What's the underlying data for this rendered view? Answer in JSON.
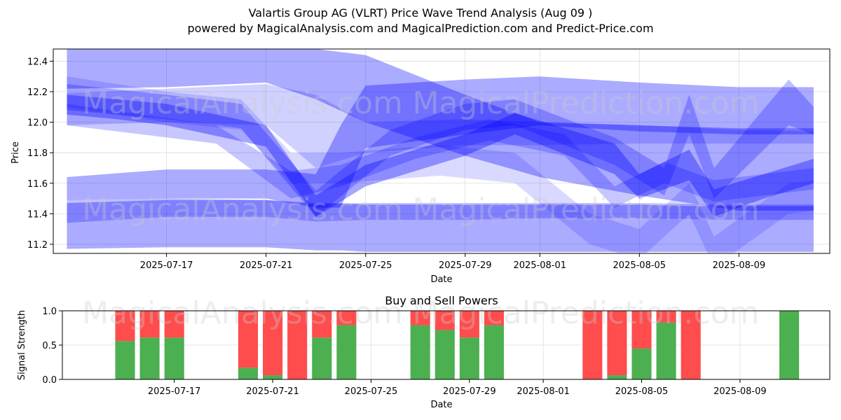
{
  "title": "Valartis Group AG (VLRT) Price Wave Trend Analysis (Aug 09 )",
  "subtitle": "powered by MagicalAnalysis.com and MagicalPrediction.com and Predict-Price.com",
  "watermarks": [
    "MagicalAnalysis.com",
    "MagicalPrediction.com"
  ],
  "colors": {
    "wave": "#0000ff",
    "buy": "#4caf50",
    "sell": "#ff4c4c"
  },
  "chart_data": [
    {
      "type": "area",
      "title": "",
      "xlabel": "Date",
      "ylabel": "Price",
      "x_ticks": [
        "2025-07-17",
        "2025-07-21",
        "2025-07-25",
        "2025-07-29",
        "2025-08-01",
        "2025-08-05",
        "2025-08-09"
      ],
      "y_ticks": [
        "11.2",
        "11.4",
        "11.6",
        "11.8",
        "12.0",
        "12.2",
        "12.4"
      ],
      "xlim": [
        "2025-07-13",
        "2025-08-12"
      ],
      "ylim": [
        11.14,
        12.48
      ],
      "grid": true,
      "series": [
        {
          "dates": [
            "2025-07-13",
            "2025-07-17",
            "2025-07-21",
            "2025-07-23",
            "2025-07-25",
            "2025-07-29",
            "2025-08-01",
            "2025-08-05",
            "2025-08-09",
            "2025-08-12"
          ],
          "upper": [
            12.48,
            12.48,
            12.48,
            12.48,
            12.44,
            12.18,
            12.0,
            11.98,
            11.96,
            11.96
          ],
          "lower": [
            12.22,
            12.23,
            12.26,
            12.15,
            12.0,
            11.78,
            11.64,
            11.52,
            11.42,
            11.42
          ],
          "alpha": 0.33
        },
        {
          "dates": [
            "2025-07-13",
            "2025-07-17",
            "2025-07-21",
            "2025-07-23",
            "2025-07-25",
            "2025-07-29",
            "2025-08-01",
            "2025-08-05",
            "2025-08-09",
            "2025-08-12"
          ],
          "upper": [
            12.19,
            12.22,
            12.25,
            12.18,
            12.0,
            12.02,
            12.0,
            11.98,
            11.95,
            11.94
          ],
          "lower": [
            11.98,
            12.0,
            11.98,
            11.7,
            11.8,
            11.85,
            11.85,
            11.86,
            11.86,
            11.86
          ],
          "alpha": 0.18
        },
        {
          "dates": [
            "2025-07-13",
            "2025-07-15",
            "2025-07-17",
            "2025-07-21",
            "2025-07-23",
            "2025-07-25",
            "2025-07-29",
            "2025-07-31",
            "2025-08-04",
            "2025-08-05",
            "2025-08-07",
            "2025-08-08",
            "2025-08-10",
            "2025-08-12"
          ],
          "upper": [
            12.18,
            12.15,
            12.12,
            11.98,
            11.52,
            11.72,
            11.92,
            12.06,
            11.86,
            11.66,
            11.82,
            11.56,
            11.66,
            11.76
          ],
          "lower": [
            12.05,
            12.02,
            11.98,
            11.84,
            11.38,
            11.58,
            11.78,
            11.92,
            11.66,
            11.5,
            11.62,
            11.38,
            11.5,
            11.6
          ],
          "alpha": 0.35
        },
        {
          "dates": [
            "2025-07-13",
            "2025-07-17",
            "2025-07-21",
            "2025-07-23",
            "2025-07-24",
            "2025-07-25",
            "2025-07-29",
            "2025-08-01",
            "2025-08-05",
            "2025-08-07",
            "2025-08-12"
          ],
          "upper": [
            11.47,
            11.49,
            11.49,
            11.47,
            11.47,
            11.46,
            11.46,
            11.46,
            11.46,
            11.45,
            11.45
          ],
          "lower": [
            11.17,
            11.18,
            11.18,
            11.16,
            11.16,
            11.15,
            11.15,
            11.15,
            11.15,
            11.15,
            11.15
          ],
          "alpha": 0.33
        },
        {
          "dates": [
            "2025-07-13",
            "2025-07-17",
            "2025-07-21",
            "2025-07-23",
            "2025-07-24",
            "2025-07-25",
            "2025-07-29",
            "2025-08-01",
            "2025-08-05",
            "2025-08-09",
            "2025-08-12"
          ],
          "upper": [
            11.64,
            11.69,
            11.69,
            11.66,
            11.98,
            12.24,
            12.28,
            12.3,
            12.26,
            12.23,
            12.23
          ],
          "lower": [
            11.49,
            11.5,
            11.5,
            11.44,
            11.44,
            11.83,
            11.92,
            11.98,
            11.94,
            11.92,
            11.92
          ],
          "alpha": 0.33
        },
        {
          "dates": [
            "2025-07-13",
            "2025-07-17",
            "2025-07-21",
            "2025-07-23",
            "2025-07-25",
            "2025-07-29",
            "2025-08-01",
            "2025-08-05",
            "2025-08-09",
            "2025-08-12"
          ],
          "upper": [
            11.49,
            11.5,
            11.49,
            11.46,
            11.47,
            11.47,
            11.47,
            11.47,
            11.46,
            11.46
          ],
          "lower": [
            11.34,
            11.38,
            11.38,
            11.35,
            11.36,
            11.36,
            11.37,
            11.37,
            11.36,
            11.36
          ],
          "alpha": 0.25
        },
        {
          "dates": [
            "2025-07-13",
            "2025-07-16",
            "2025-07-19",
            "2025-07-22",
            "2025-07-24",
            "2025-07-27",
            "2025-07-30",
            "2025-08-02",
            "2025-08-04",
            "2025-08-06",
            "2025-08-08",
            "2025-08-10",
            "2025-08-12"
          ],
          "upper": [
            12.12,
            12.05,
            11.98,
            11.68,
            11.72,
            11.9,
            12.02,
            11.92,
            11.58,
            11.74,
            11.62,
            11.66,
            11.7
          ],
          "lower": [
            11.98,
            11.92,
            11.86,
            11.5,
            11.58,
            11.76,
            11.88,
            11.78,
            11.44,
            11.6,
            11.48,
            11.52,
            11.56
          ],
          "alpha": 0.22
        },
        {
          "dates": [
            "2025-07-13",
            "2025-07-17",
            "2025-07-20",
            "2025-07-22",
            "2025-07-24",
            "2025-07-28",
            "2025-07-31",
            "2025-08-03",
            "2025-08-05",
            "2025-08-07",
            "2025-08-08",
            "2025-08-11",
            "2025-08-12"
          ],
          "upper": [
            12.3,
            12.2,
            12.15,
            11.8,
            11.8,
            11.85,
            11.8,
            11.4,
            11.3,
            11.6,
            11.25,
            11.6,
            11.62
          ],
          "lower": [
            12.1,
            12.0,
            11.95,
            11.6,
            11.6,
            11.65,
            11.6,
            11.2,
            11.1,
            11.4,
            11.05,
            11.4,
            11.42
          ],
          "alpha": 0.15
        },
        {
          "dates": [
            "2025-07-13",
            "2025-07-17",
            "2025-07-20",
            "2025-07-23",
            "2025-07-26",
            "2025-07-29",
            "2025-07-31",
            "2025-08-04",
            "2025-08-06",
            "2025-08-07",
            "2025-08-08",
            "2025-08-11",
            "2025-08-12"
          ],
          "upper": [
            12.25,
            12.18,
            12.12,
            11.55,
            11.95,
            12.12,
            12.15,
            11.9,
            11.7,
            12.18,
            11.7,
            12.28,
            12.1
          ],
          "lower": [
            12.08,
            12.02,
            11.96,
            11.38,
            11.78,
            11.95,
            11.98,
            11.72,
            11.52,
            11.92,
            11.5,
            11.98,
            11.92
          ],
          "alpha": 0.25
        }
      ]
    },
    {
      "type": "bar",
      "title": "Buy and Sell Powers",
      "xlabel": "Date",
      "ylabel": "Signal Strength",
      "x_ticks": [
        "2025-07-17",
        "2025-07-21",
        "2025-07-25",
        "2025-07-29",
        "2025-08-01",
        "2025-08-05",
        "2025-08-09"
      ],
      "y_ticks": [
        "0.0",
        "0.5",
        "1.0"
      ],
      "ylim": [
        0,
        1
      ],
      "categories": [
        "2025-07-15",
        "2025-07-16",
        "2025-07-17",
        "2025-07-20",
        "2025-07-21",
        "2025-07-22",
        "2025-07-23",
        "2025-07-24",
        "2025-07-27",
        "2025-07-28",
        "2025-07-29",
        "2025-07-30",
        "2025-08-03",
        "2025-08-04",
        "2025-08-05",
        "2025-08-06",
        "2025-08-07",
        "2025-08-11"
      ],
      "series": [
        {
          "name": "buy",
          "values": [
            0.56,
            0.61,
            0.61,
            0.17,
            0.06,
            0.0,
            0.61,
            0.79,
            0.79,
            0.72,
            0.61,
            0.79,
            0.0,
            0.06,
            0.45,
            0.83,
            0.0,
            1.0
          ]
        },
        {
          "name": "sell",
          "values": [
            0.44,
            0.39,
            0.39,
            0.83,
            0.94,
            1.0,
            0.39,
            0.21,
            0.21,
            0.28,
            0.39,
            0.21,
            1.0,
            0.94,
            0.55,
            0.17,
            1.0,
            0.0
          ]
        }
      ]
    }
  ]
}
